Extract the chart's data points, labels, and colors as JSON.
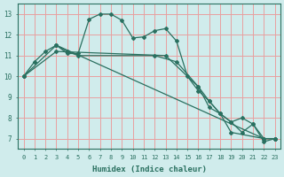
{
  "background_color": "#d0ecec",
  "grid_color": "#e8a0a0",
  "line_color": "#2a7060",
  "xlabel": "Humidex (Indice chaleur)",
  "ylim": [
    6.5,
    13.5
  ],
  "xlim": [
    -0.5,
    23.5
  ],
  "yticks": [
    7,
    8,
    9,
    10,
    11,
    12,
    13
  ],
  "xticks": [
    0,
    1,
    2,
    3,
    4,
    5,
    6,
    7,
    8,
    9,
    10,
    11,
    12,
    13,
    14,
    15,
    16,
    17,
    18,
    19,
    20,
    21,
    22,
    23
  ],
  "line1_x": [
    0,
    1,
    2,
    3,
    4,
    5,
    6,
    7,
    8,
    9,
    10,
    11,
    12,
    13,
    14,
    15,
    16,
    17,
    18,
    19,
    22,
    23
  ],
  "line1_y": [
    10.0,
    10.7,
    11.2,
    11.5,
    11.1,
    11.1,
    12.75,
    13.0,
    13.0,
    12.7,
    11.85,
    11.9,
    12.2,
    12.3,
    11.7,
    10.0,
    9.3,
    8.8,
    8.2,
    7.3,
    7.0,
    7.0
  ],
  "line2_x": [
    0,
    3,
    22,
    23
  ],
  "line2_y": [
    10.0,
    11.5,
    7.0,
    7.0
  ],
  "line3_x": [
    0,
    3,
    13,
    16,
    17,
    18,
    19,
    20,
    21,
    22,
    23
  ],
  "line3_y": [
    10.0,
    11.2,
    11.0,
    9.5,
    8.8,
    8.2,
    7.8,
    8.0,
    7.7,
    7.0,
    7.0
  ],
  "line4_x": [
    3,
    4,
    5,
    12,
    14,
    16,
    17,
    18,
    19,
    20,
    21,
    22,
    23
  ],
  "line4_y": [
    11.5,
    11.2,
    11.0,
    11.0,
    10.7,
    9.5,
    8.5,
    8.2,
    7.8,
    7.3,
    7.7,
    6.85,
    7.0
  ]
}
